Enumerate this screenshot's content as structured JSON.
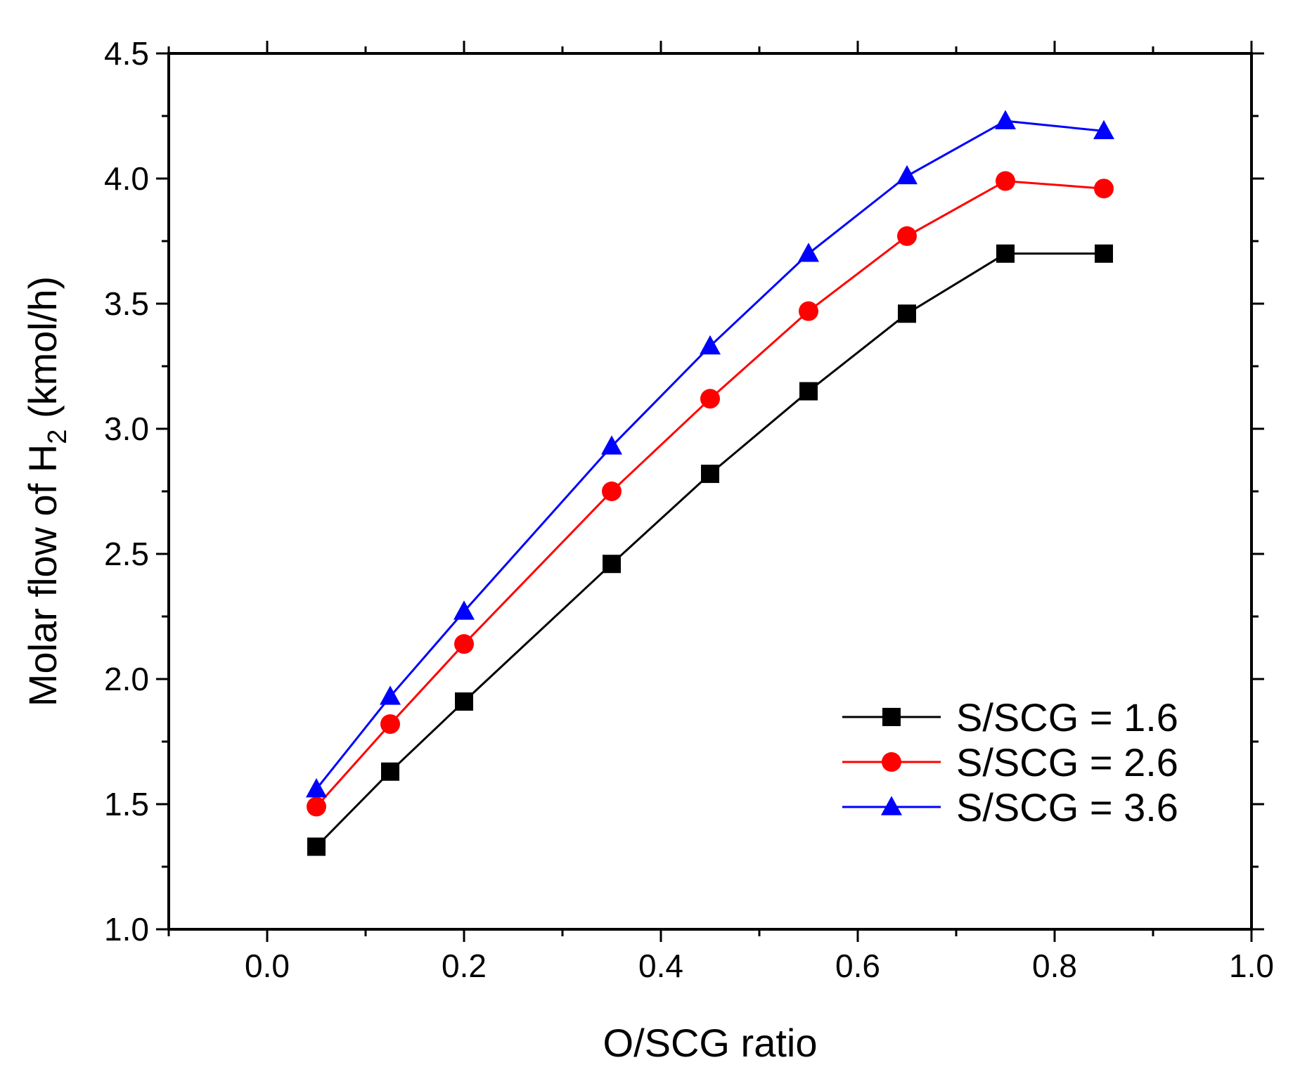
{
  "chart_data": {
    "type": "line",
    "title": "",
    "xlabel": "O/SCG ratio",
    "ylabel": {
      "prefix": "Molar flow of H",
      "subscript": "2",
      "suffix": " (kmol/h)"
    },
    "xlim": [
      -0.1,
      1.0
    ],
    "ylim": [
      1.0,
      4.5
    ],
    "xticks": [
      0.0,
      0.2,
      0.4,
      0.6,
      0.8,
      1.0
    ],
    "xtick_labels": [
      "0.0",
      "0.2",
      "0.4",
      "0.6",
      "0.8",
      "1.0"
    ],
    "yticks": [
      1.0,
      1.5,
      2.0,
      2.5,
      3.0,
      3.5,
      4.0,
      4.5
    ],
    "ytick_labels": [
      "1.0",
      "1.5",
      "2.0",
      "2.5",
      "3.0",
      "3.5",
      "4.0",
      "4.5"
    ],
    "grid": false,
    "legend_position": "lower-right",
    "x": [
      0.05,
      0.125,
      0.2,
      0.35,
      0.45,
      0.55,
      0.65,
      0.75,
      0.85
    ],
    "series": [
      {
        "name": "S/SCG = 1.6",
        "color": "#000000",
        "marker": "square",
        "values": [
          1.33,
          1.63,
          1.91,
          2.46,
          2.82,
          3.15,
          3.46,
          3.7,
          3.7
        ]
      },
      {
        "name": "S/SCG = 2.6",
        "color": "#ff0000",
        "marker": "circle",
        "values": [
          1.49,
          1.82,
          2.14,
          2.75,
          3.12,
          3.47,
          3.77,
          3.99,
          3.96
        ]
      },
      {
        "name": "S/SCG = 3.6",
        "color": "#0000ff",
        "marker": "triangle",
        "values": [
          1.56,
          1.93,
          2.27,
          2.93,
          3.33,
          3.7,
          4.01,
          4.23,
          4.19
        ]
      }
    ]
  }
}
